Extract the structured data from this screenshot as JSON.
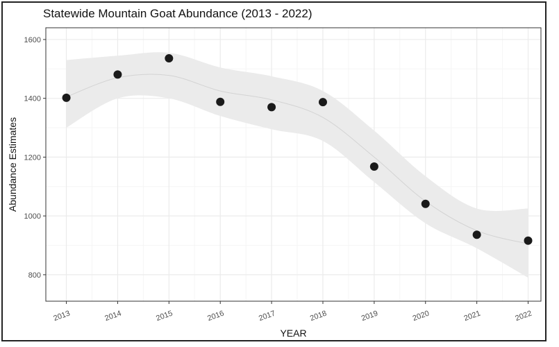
{
  "chart_data": {
    "type": "scatter",
    "title": "Statewide Mountain Goat Abundance (2013 - 2022)",
    "xlabel": "YEAR",
    "ylabel": "Abundance Estimates",
    "x": [
      2013,
      2014,
      2015,
      2016,
      2017,
      2018,
      2019,
      2020,
      2021,
      2022
    ],
    "series": [
      {
        "values": [
          1402,
          1481,
          1536,
          1388,
          1370,
          1387,
          1168,
          1041,
          936,
          916
        ]
      }
    ],
    "smooth": {
      "fit": [
        1405,
        1470,
        1478,
        1425,
        1395,
        1335,
        1200,
        1050,
        950,
        905
      ],
      "ci_lower": [
        1300,
        1400,
        1400,
        1340,
        1295,
        1255,
        1115,
        975,
        890,
        790
      ],
      "ci_upper": [
        1530,
        1545,
        1555,
        1505,
        1475,
        1425,
        1290,
        1135,
        1025,
        1025
      ]
    },
    "x_ticks": [
      "2013",
      "2014",
      "2015",
      "2016",
      "2017",
      "2018",
      "2019",
      "2020",
      "2021",
      "2022"
    ],
    "y_ticks": [
      800,
      1000,
      1200,
      1400,
      1600
    ],
    "xlim": [
      2012.6,
      2022.25
    ],
    "ylim": [
      710,
      1640
    ],
    "grid": true,
    "legend": "none",
    "colors": {
      "points": "#1a1a1a",
      "band": "#ebebeb",
      "fit_line": "#d3d3d3",
      "grid_major": "#ebebeb",
      "grid_minor": "#f5f5f5",
      "panel_border": "#333333"
    }
  }
}
